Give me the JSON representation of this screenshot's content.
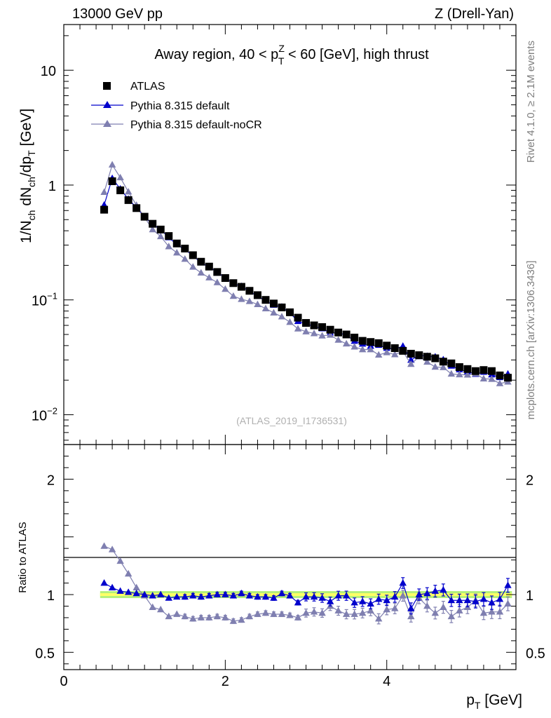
{
  "header": {
    "energy": "13000 GeV pp",
    "process": "Z (Drell-Yan)"
  },
  "side_labels": {
    "rivet": "Rivet 4.1.0, ≥ 2.1M events",
    "mcplots": "mcplots.cern.ch [arXiv:1306.3436]"
  },
  "colors": {
    "atlas": "#000000",
    "default": "#0000cc",
    "nocr": "#7f7fb0",
    "band_inner": "#ffff66",
    "band_outer": "#b3f07a"
  },
  "chart_data": {
    "type": "scatter",
    "title": "Away region, 40 < p_T^Z < 60 [GeV], high thrust",
    "title_parts": [
      "Away region, 40 < p",
      "Z",
      "T",
      " < 60 [GeV], high thrust"
    ],
    "watermark": "(ATLAS_2019_I1736531)",
    "xlabel": "p_T [GeV]",
    "xlabel_parts": [
      "p",
      "T",
      " [GeV]"
    ],
    "ylabel": "1/N_ch dN_ch/dp_T [GeV]",
    "ylabel_parts": [
      "1/N",
      "ch",
      " dN",
      "ch",
      "/dp",
      "T",
      " [GeV]"
    ],
    "ratio_ylabel": "Ratio to ATLAS",
    "xlim": [
      0,
      5.6
    ],
    "ylim_log": [
      0.0055,
      25
    ],
    "ratio_ylim": [
      0.35,
      2.3
    ],
    "x_ticks": [
      {
        "v": 0,
        "label": "0"
      },
      {
        "v": 2,
        "label": "2"
      },
      {
        "v": 4,
        "label": "4"
      }
    ],
    "y_ticks_main": [
      {
        "v": 0.01,
        "mant": "10",
        "exp": "−2"
      },
      {
        "v": 0.1,
        "mant": "10",
        "exp": "−1"
      },
      {
        "v": 1,
        "mant": "1",
        "exp": ""
      },
      {
        "v": 10,
        "mant": "10",
        "exp": ""
      }
    ],
    "y_ticks_ratio": [
      {
        "v": 0.5,
        "label": "0.5"
      },
      {
        "v": 1,
        "label": "1"
      },
      {
        "v": 2,
        "label": "2"
      }
    ],
    "legend": [
      {
        "key": "atlas",
        "label": "ATLAS",
        "marker": "square"
      },
      {
        "key": "default",
        "label": "Pythia 8.315 default",
        "marker": "triangle"
      },
      {
        "key": "nocr",
        "label": "Pythia 8.315 default-noCR",
        "marker": "triangle"
      }
    ],
    "x": [
      0.5,
      0.6,
      0.7,
      0.8,
      0.9,
      1.0,
      1.1,
      1.2,
      1.3,
      1.4,
      1.5,
      1.6,
      1.7,
      1.8,
      1.9,
      2.0,
      2.1,
      2.2,
      2.3,
      2.4,
      2.5,
      2.6,
      2.7,
      2.8,
      2.9,
      3.0,
      3.1,
      3.2,
      3.3,
      3.4,
      3.5,
      3.6,
      3.7,
      3.8,
      3.9,
      4.0,
      4.1,
      4.2,
      4.3,
      4.4,
      4.5,
      4.6,
      4.7,
      4.8,
      4.9,
      5.0,
      5.1,
      5.2,
      5.3,
      5.4,
      5.5
    ],
    "atlas": [
      0.61,
      1.08,
      0.9,
      0.74,
      0.63,
      0.53,
      0.46,
      0.41,
      0.36,
      0.31,
      0.28,
      0.245,
      0.215,
      0.195,
      0.175,
      0.155,
      0.14,
      0.13,
      0.12,
      0.11,
      0.1,
      0.093,
      0.086,
      0.078,
      0.07,
      0.063,
      0.06,
      0.058,
      0.055,
      0.052,
      0.05,
      0.047,
      0.044,
      0.043,
      0.042,
      0.04,
      0.038,
      0.036,
      0.034,
      0.033,
      0.032,
      0.031,
      0.029,
      0.028,
      0.026,
      0.025,
      0.024,
      0.0245,
      0.024,
      0.022,
      0.021
    ],
    "ratio_default": [
      1.1,
      1.06,
      1.03,
      1.02,
      1.01,
      1.0,
      0.99,
      1.0,
      0.97,
      0.98,
      0.98,
      0.99,
      0.98,
      0.99,
      1.0,
      1.0,
      0.99,
      1.01,
      0.99,
      0.98,
      0.98,
      0.97,
      1.01,
      0.99,
      0.93,
      0.98,
      0.98,
      0.97,
      0.94,
      0.99,
      0.99,
      0.93,
      0.94,
      0.92,
      0.96,
      0.95,
      0.98,
      1.1,
      0.88,
      1.0,
      1.01,
      1.03,
      1.04,
      0.95,
      0.95,
      0.95,
      0.94,
      0.96,
      0.93,
      0.96,
      1.08
    ],
    "ratio_nocr": [
      1.42,
      1.39,
      1.29,
      1.18,
      1.06,
      0.99,
      0.89,
      0.87,
      0.81,
      0.83,
      0.81,
      0.79,
      0.8,
      0.8,
      0.81,
      0.8,
      0.77,
      0.78,
      0.81,
      0.83,
      0.84,
      0.83,
      0.83,
      0.82,
      0.8,
      0.84,
      0.85,
      0.84,
      0.9,
      0.86,
      0.83,
      0.83,
      0.84,
      0.86,
      0.79,
      0.87,
      0.88,
      0.99,
      0.81,
      0.97,
      0.9,
      0.84,
      0.89,
      0.81,
      0.86,
      0.89,
      0.95,
      0.84,
      0.85,
      0.85,
      0.92
    ]
  }
}
